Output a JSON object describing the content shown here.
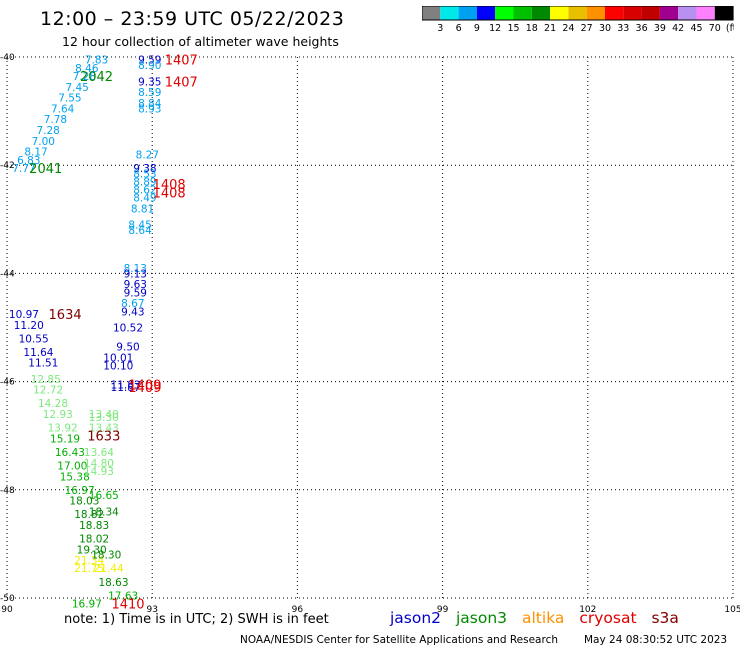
{
  "header": {
    "title": "12:00 – 23:59 UTC 05/22/2023",
    "subtitle": "12 hour collection of altimeter wave heights"
  },
  "legend": {
    "ticks": [
      "3",
      "6",
      "9",
      "12",
      "15",
      "18",
      "21",
      "24",
      "27",
      "30",
      "33",
      "36",
      "39",
      "42",
      "45",
      "70",
      "(ft)"
    ],
    "colors": [
      "#808080",
      "#00e8e8",
      "#00a0f0",
      "#0000ff",
      "#00ff00",
      "#00c000",
      "#008800",
      "#ffff00",
      "#e8c000",
      "#ff9000",
      "#ff0000",
      "#d80000",
      "#c00000",
      "#a00090",
      "#b890f0",
      "#ff80ff",
      "#000000"
    ]
  },
  "footnote": {
    "note": "note:  1) Time is in UTC;  2) SWH is in feet",
    "center": "NOAA/NESDIS Center for Satellite Applications and Research",
    "timestamp": "May 24 08:30:52 UTC 2023"
  },
  "satellites": [
    {
      "name": "jason2",
      "color": "#0000c8"
    },
    {
      "name": "jason3",
      "color": "#008800"
    },
    {
      "name": "altika",
      "color": "#ff9000"
    },
    {
      "name": "cryosat",
      "color": "#e00000"
    },
    {
      "name": "s3a",
      "color": "#800000"
    }
  ],
  "chart_data": {
    "type": "scatter",
    "title": "12:00 – 23:59 UTC 05/22/2023",
    "xlim": [
      90,
      105
    ],
    "ylim": [
      -50,
      -40
    ],
    "xticks": [
      "90",
      "93",
      "96",
      "99",
      "102",
      "105"
    ],
    "yticks": [
      "-40",
      "-42",
      "-44",
      "-46",
      "-48",
      "-50"
    ],
    "grid": true,
    "values": [
      {
        "x": 91.85,
        "y": -40.05,
        "label": "7.83",
        "color": "#00a0f0"
      },
      {
        "x": 91.65,
        "y": -40.2,
        "label": "8.46",
        "color": "#00a0f0"
      },
      {
        "x": 91.6,
        "y": -40.35,
        "label": "7.28",
        "color": "#00a0f0"
      },
      {
        "x": 91.45,
        "y": -40.55,
        "label": "7.45",
        "color": "#00a0f0"
      },
      {
        "x": 91.3,
        "y": -40.75,
        "label": "7.55",
        "color": "#00a0f0"
      },
      {
        "x": 91.15,
        "y": -40.95,
        "label": "7.64",
        "color": "#00a0f0"
      },
      {
        "x": 91.0,
        "y": -41.15,
        "label": "7.78",
        "color": "#00a0f0"
      },
      {
        "x": 90.85,
        "y": -41.35,
        "label": "7.28",
        "color": "#00a0f0"
      },
      {
        "x": 90.75,
        "y": -41.55,
        "label": "7.00",
        "color": "#00a0f0"
      },
      {
        "x": 90.6,
        "y": -41.75,
        "label": "8.17",
        "color": "#00a0f0"
      },
      {
        "x": 90.45,
        "y": -41.9,
        "label": "6.83",
        "color": "#00a0f0"
      },
      {
        "x": 90.35,
        "y": -42.05,
        "label": "7.77",
        "color": "#00a0f0"
      },
      {
        "x": 92.95,
        "y": -40.05,
        "label": "9.59",
        "color": "#0000c8"
      },
      {
        "x": 92.95,
        "y": -40.15,
        "label": "8.90",
        "color": "#00a0f0"
      },
      {
        "x": 92.95,
        "y": -40.45,
        "label": "9.35",
        "color": "#0000c8"
      },
      {
        "x": 92.95,
        "y": -40.65,
        "label": "8.59",
        "color": "#00a0f0"
      },
      {
        "x": 92.95,
        "y": -40.85,
        "label": "8.84",
        "color": "#00a0f0"
      },
      {
        "x": 92.95,
        "y": -40.95,
        "label": "8.93",
        "color": "#00a0f0"
      },
      {
        "x": 92.9,
        "y": -41.8,
        "label": "8.27",
        "color": "#00a0f0"
      },
      {
        "x": 92.85,
        "y": -42.05,
        "label": "9.38",
        "color": "#0000c8"
      },
      {
        "x": 92.85,
        "y": -42.15,
        "label": "8.53",
        "color": "#00a0f0"
      },
      {
        "x": 92.85,
        "y": -42.3,
        "label": "8.89",
        "color": "#00a0f0"
      },
      {
        "x": 92.85,
        "y": -42.45,
        "label": "8.62",
        "color": "#00a0f0"
      },
      {
        "x": 92.85,
        "y": -42.6,
        "label": "8.49",
        "color": "#00a0f0"
      },
      {
        "x": 92.8,
        "y": -42.8,
        "label": "8.81",
        "color": "#00a0f0"
      },
      {
        "x": 92.75,
        "y": -43.1,
        "label": "8.45",
        "color": "#00a0f0"
      },
      {
        "x": 92.75,
        "y": -43.2,
        "label": "8.64",
        "color": "#00a0f0"
      },
      {
        "x": 92.65,
        "y": -43.9,
        "label": "8.13",
        "color": "#00a0f0"
      },
      {
        "x": 92.65,
        "y": -44.0,
        "label": "9.13",
        "color": "#0000c8"
      },
      {
        "x": 92.65,
        "y": -44.2,
        "label": "9.63",
        "color": "#0000c8"
      },
      {
        "x": 92.65,
        "y": -44.35,
        "label": "9.59",
        "color": "#0000c8"
      },
      {
        "x": 92.6,
        "y": -44.55,
        "label": "8.67",
        "color": "#00a0f0"
      },
      {
        "x": 92.6,
        "y": -44.7,
        "label": "9.43",
        "color": "#0000c8"
      },
      {
        "x": 92.5,
        "y": -45.0,
        "label": "10.52",
        "color": "#0000c8"
      },
      {
        "x": 92.5,
        "y": -45.35,
        "label": "9.50",
        "color": "#0000c8"
      },
      {
        "x": 92.3,
        "y": -45.55,
        "label": "10.01",
        "color": "#0000c8"
      },
      {
        "x": 92.3,
        "y": -45.7,
        "label": "10.10",
        "color": "#0000c8"
      },
      {
        "x": 92.45,
        "y": -46.05,
        "label": "11.83",
        "color": "#0000c8"
      },
      {
        "x": 92.45,
        "y": -46.1,
        "label": "11.87",
        "color": "#0000c8"
      },
      {
        "x": 90.35,
        "y": -44.75,
        "label": "10.97",
        "color": "#0000c8"
      },
      {
        "x": 90.45,
        "y": -44.95,
        "label": "11.20",
        "color": "#0000c8"
      },
      {
        "x": 90.55,
        "y": -45.2,
        "label": "10.55",
        "color": "#0000c8"
      },
      {
        "x": 90.65,
        "y": -45.45,
        "label": "11.64",
        "color": "#0000c8"
      },
      {
        "x": 90.75,
        "y": -45.65,
        "label": "11.51",
        "color": "#0000c8"
      },
      {
        "x": 90.8,
        "y": -45.95,
        "label": "12.85",
        "color": "#7ee87e"
      },
      {
        "x": 90.85,
        "y": -46.15,
        "label": "12.72",
        "color": "#7ee87e"
      },
      {
        "x": 90.95,
        "y": -46.4,
        "label": "14.28",
        "color": "#7ee87e"
      },
      {
        "x": 91.05,
        "y": -46.6,
        "label": "12.93",
        "color": "#7ee87e"
      },
      {
        "x": 91.15,
        "y": -46.85,
        "label": "13.92",
        "color": "#7ee87e"
      },
      {
        "x": 91.2,
        "y": -47.05,
        "label": "15.19",
        "color": "#00b000"
      },
      {
        "x": 91.3,
        "y": -47.3,
        "label": "16.43",
        "color": "#00b000"
      },
      {
        "x": 91.35,
        "y": -47.55,
        "label": "17.00",
        "color": "#00b000"
      },
      {
        "x": 91.4,
        "y": -47.75,
        "label": "15.38",
        "color": "#00b000"
      },
      {
        "x": 91.5,
        "y": -48.0,
        "label": "16.97",
        "color": "#00b000"
      },
      {
        "x": 91.6,
        "y": -48.2,
        "label": "18.03",
        "color": "#008800"
      },
      {
        "x": 91.7,
        "y": -48.45,
        "label": "18.82",
        "color": "#008800"
      },
      {
        "x": 91.8,
        "y": -48.65,
        "label": "18.83",
        "color": "#008800"
      },
      {
        "x": 91.8,
        "y": -48.9,
        "label": "18.02",
        "color": "#008800"
      },
      {
        "x": 91.75,
        "y": -49.1,
        "label": "19.30",
        "color": "#008800"
      },
      {
        "x": 91.7,
        "y": -49.3,
        "label": "21.34",
        "color": "#f0f000"
      },
      {
        "x": 91.7,
        "y": -49.45,
        "label": "21.75",
        "color": "#f0f000"
      },
      {
        "x": 92.0,
        "y": -46.6,
        "label": "13.40",
        "color": "#7ee87e"
      },
      {
        "x": 92.0,
        "y": -46.65,
        "label": "13.30",
        "color": "#7ee87e"
      },
      {
        "x": 92.0,
        "y": -46.85,
        "label": "13.43",
        "color": "#7ee87e"
      },
      {
        "x": 91.9,
        "y": -47.3,
        "label": "13.64",
        "color": "#7ee87e"
      },
      {
        "x": 91.9,
        "y": -47.5,
        "label": "14.80",
        "color": "#7ee87e"
      },
      {
        "x": 91.9,
        "y": -47.65,
        "label": "14.93",
        "color": "#7ee87e"
      },
      {
        "x": 92.0,
        "y": -48.1,
        "label": "16.65",
        "color": "#00b000"
      },
      {
        "x": 92.0,
        "y": -48.4,
        "label": "18.34",
        "color": "#008800"
      },
      {
        "x": 92.05,
        "y": -49.2,
        "label": "18.30",
        "color": "#008800"
      },
      {
        "x": 92.1,
        "y": -49.45,
        "label": "21.44",
        "color": "#f0f000"
      },
      {
        "x": 92.2,
        "y": -49.7,
        "label": "18.63",
        "color": "#008800"
      },
      {
        "x": 92.4,
        "y": -49.95,
        "label": "17.63",
        "color": "#00b000"
      },
      {
        "x": 91.65,
        "y": -50.1,
        "label": "16.97",
        "color": "#00b000"
      }
    ],
    "annotations": [
      {
        "x": 91.85,
        "y": -40.35,
        "label": "2042",
        "color": "#008800"
      },
      {
        "x": 90.8,
        "y": -42.05,
        "label": "2041",
        "color": "#008800"
      },
      {
        "x": 93.6,
        "y": -40.05,
        "label": "1407",
        "color": "#e00000"
      },
      {
        "x": 93.6,
        "y": -40.45,
        "label": "1407",
        "color": "#e00000"
      },
      {
        "x": 93.35,
        "y": -42.35,
        "label": "1408",
        "color": "#e00000"
      },
      {
        "x": 93.35,
        "y": -42.5,
        "label": "1408",
        "color": "#e00000"
      },
      {
        "x": 91.2,
        "y": -44.75,
        "label": "1634",
        "color": "#800000"
      },
      {
        "x": 92.85,
        "y": -46.05,
        "label": "1409",
        "color": "#e00000"
      },
      {
        "x": 92.85,
        "y": -46.1,
        "label": "1409",
        "color": "#e00000"
      },
      {
        "x": 92.0,
        "y": -47.0,
        "label": "1633",
        "color": "#800000"
      },
      {
        "x": 92.5,
        "y": -50.1,
        "label": "1410",
        "color": "#e00000"
      }
    ]
  }
}
